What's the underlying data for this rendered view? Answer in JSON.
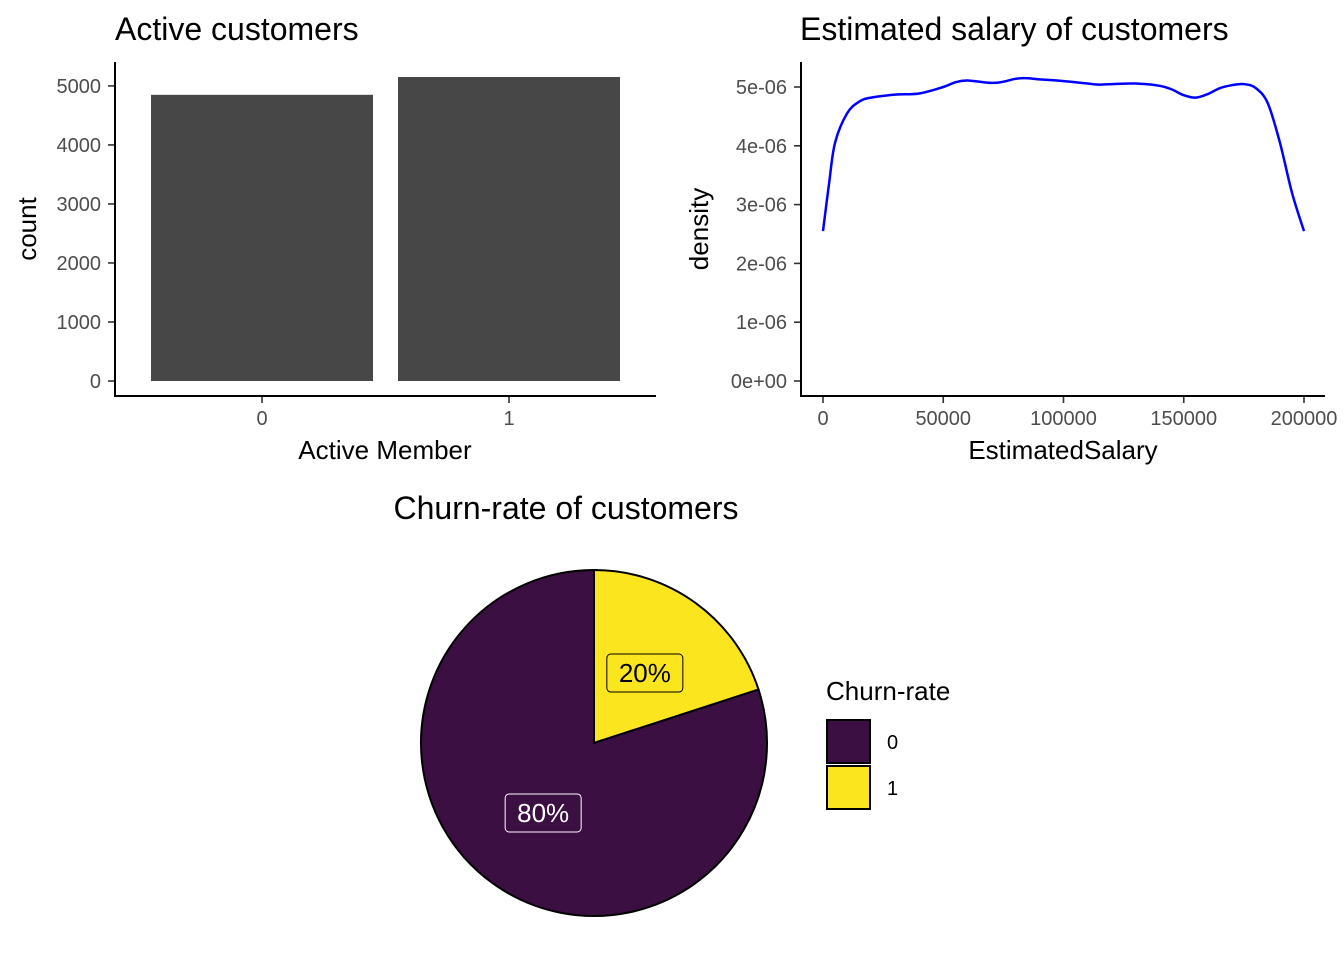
{
  "chart_data": [
    {
      "type": "bar",
      "title": "Active customers",
      "xlabel": "Active Member",
      "ylabel": "count",
      "categories": [
        "0",
        "1"
      ],
      "values": [
        4849,
        5151
      ],
      "ylim": [
        0,
        5151
      ],
      "yticks": [
        0,
        1000,
        2000,
        3000,
        4000,
        5000
      ],
      "bar_color": "#474747",
      "grid": false
    },
    {
      "type": "line",
      "title": "Estimated salary of customers",
      "xlabel": "EstimatedSalary",
      "ylabel": "density",
      "xlim": [
        0,
        200000
      ],
      "ylim": [
        0,
        5.17e-06
      ],
      "xticks": [
        0,
        50000,
        100000,
        150000,
        200000
      ],
      "yticks": [
        "0e+00",
        "1e-06",
        "2e-06",
        "3e-06",
        "4e-06",
        "5e-06"
      ],
      "line_color": "#0000ff",
      "grid": false,
      "series": [
        {
          "x": [
            0,
            2500,
            5000,
            10000,
            15000,
            20000,
            30000,
            40000,
            50000,
            55000,
            60000,
            70000,
            75000,
            80000,
            85000,
            90000,
            100000,
            110000,
            115000,
            120000,
            130000,
            140000,
            145000,
            150000,
            155000,
            160000,
            165000,
            170000,
            175000,
            180000,
            185000,
            190000,
            195000,
            200000
          ],
          "y": [
            2.55e-06,
            3.35e-06,
            4.05e-06,
            4.55e-06,
            4.75e-06,
            4.82e-06,
            4.87e-06,
            4.89e-06,
            5e-06,
            5.08e-06,
            5.11e-06,
            5.07e-06,
            5.09e-06,
            5.14e-06,
            5.15e-06,
            5.13e-06,
            5.1e-06,
            5.06e-06,
            5.04e-06,
            5.05e-06,
            5.06e-06,
            5.02e-06,
            4.96e-06,
            4.86e-06,
            4.82e-06,
            4.88e-06,
            4.98e-06,
            5.03e-06,
            5.05e-06,
            4.98e-06,
            4.72e-06,
            4.05e-06,
            3.2e-06,
            2.55e-06
          ]
        }
      ]
    },
    {
      "type": "pie",
      "title": "Churn-rate of customers",
      "legend_title": "Churn-rate",
      "legend_position": "right",
      "slices": [
        {
          "category": "0",
          "value": 80,
          "label": "80%",
          "color": "#3b0f42"
        },
        {
          "category": "1",
          "value": 20,
          "label": "20%",
          "color": "#fbe51f"
        }
      ]
    }
  ]
}
